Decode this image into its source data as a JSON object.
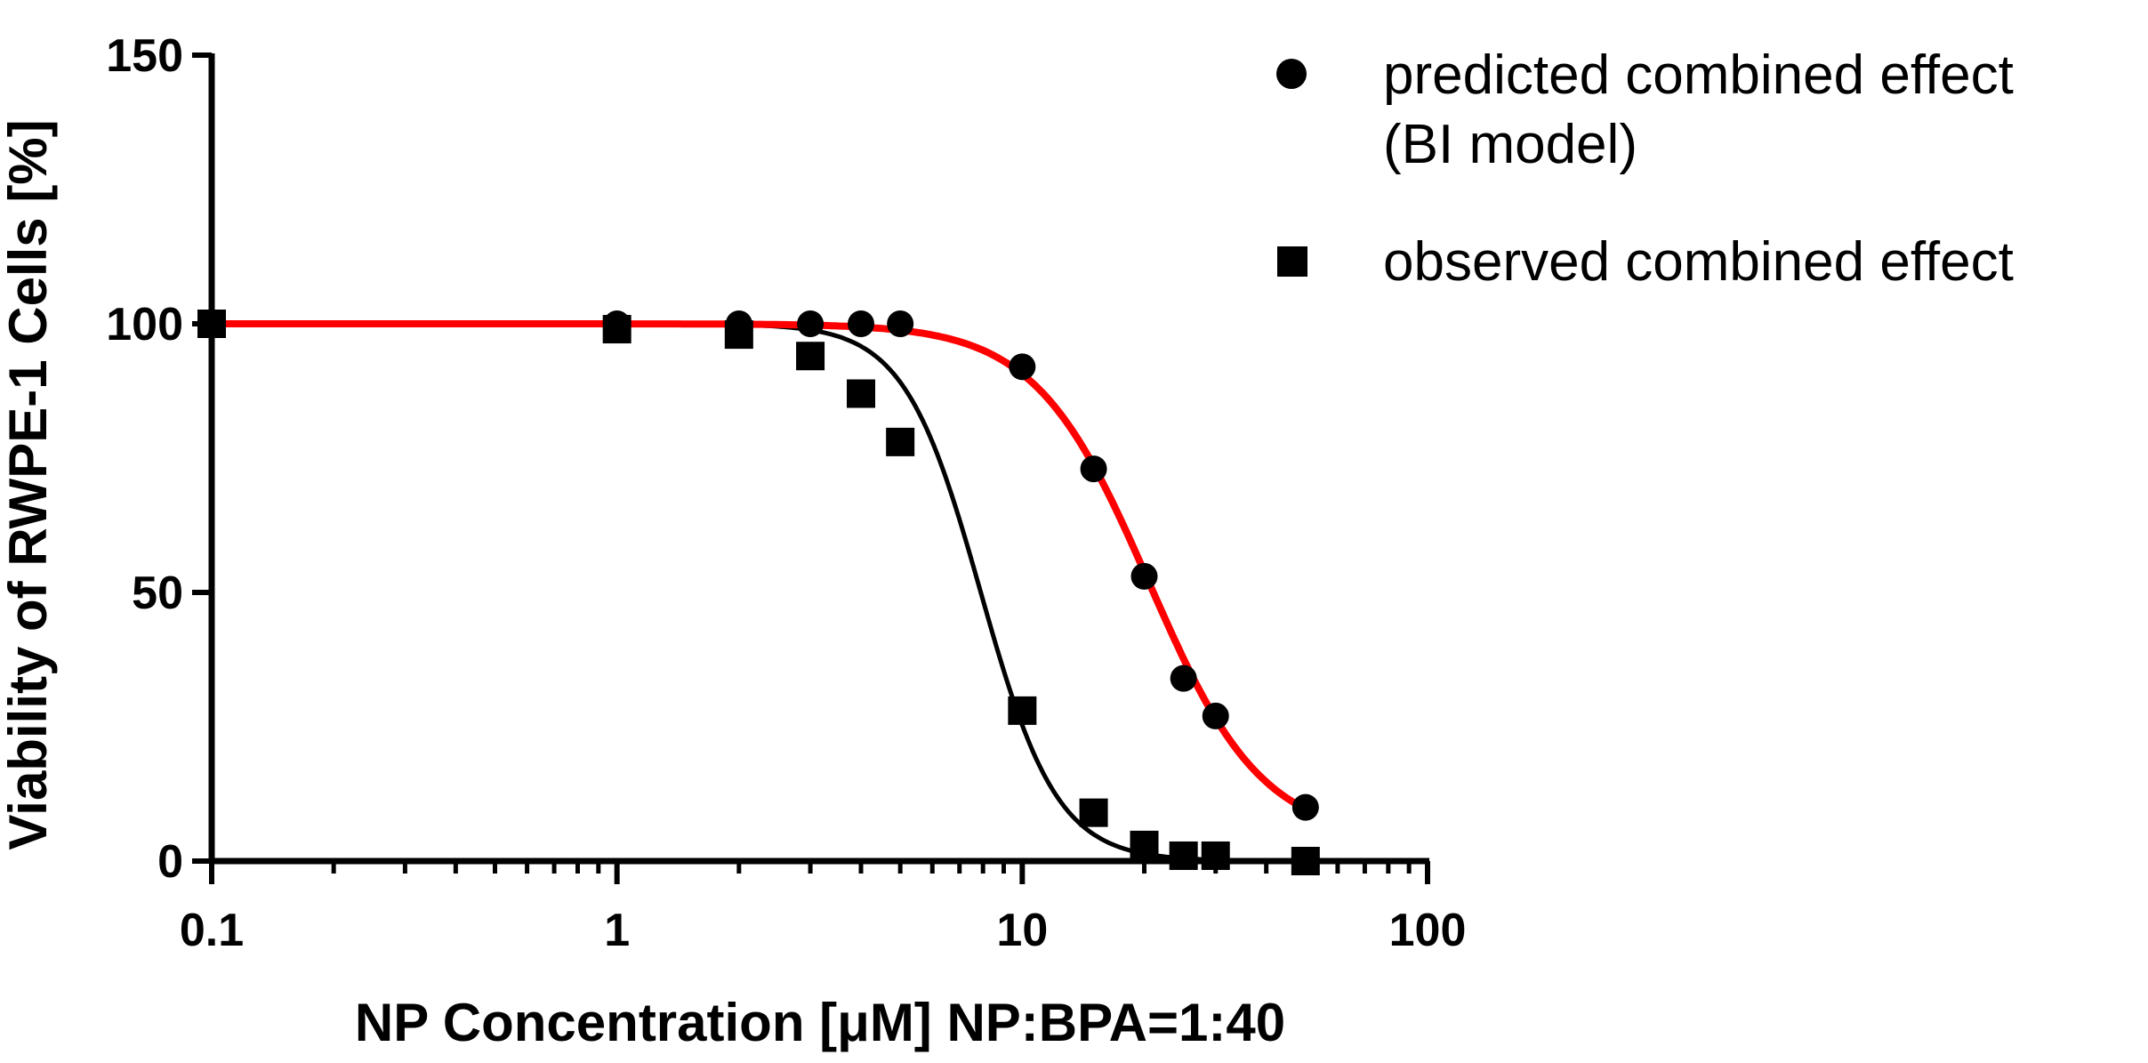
{
  "chart_data": {
    "type": "scatter",
    "xscale": "log",
    "xlim": [
      0.1,
      100
    ],
    "ylim": [
      0,
      150
    ],
    "xticks": [
      0.1,
      1,
      10,
      100
    ],
    "xtick_labels": [
      "0.1",
      "1",
      "10",
      "100"
    ],
    "yticks": [
      0,
      50,
      100,
      150
    ],
    "ytick_labels": [
      "0",
      "50",
      "100",
      "150"
    ],
    "xlabel": "NP Concentration [μM] NP:BPA=1:40",
    "ylabel": "Viability of RWPE-1 Cells [%]",
    "grid": false,
    "legend_position": "top-right",
    "series": [
      {
        "name": "predicted combined effect (BI model)",
        "legend_lines": [
          "predicted combined effect",
          "(BI model)"
        ],
        "marker": "circle",
        "color": "#000000",
        "x": [
          0.1,
          1,
          2,
          3,
          4,
          5,
          10,
          15,
          20,
          25,
          30,
          50
        ],
        "y": [
          100,
          100,
          100,
          100,
          100,
          100,
          92,
          73,
          53,
          34,
          27,
          10
        ],
        "fit": {
          "top": 100,
          "bottom": 4,
          "ec50": 20.5,
          "hill": 3.1,
          "color": "#ff0000"
        }
      },
      {
        "name": "observed combined effect",
        "legend_lines": [
          "observed combined effect"
        ],
        "marker": "square",
        "color": "#000000",
        "x": [
          0.1,
          1,
          2,
          3,
          4,
          5,
          10,
          15,
          20,
          25,
          30,
          50
        ],
        "y": [
          100,
          99,
          98,
          94,
          87,
          78,
          28,
          9,
          3,
          1,
          1,
          0
        ],
        "fit": {
          "top": 100,
          "bottom": 0,
          "ec50": 7.9,
          "hill": 4.6,
          "color": "#000000"
        }
      }
    ]
  }
}
